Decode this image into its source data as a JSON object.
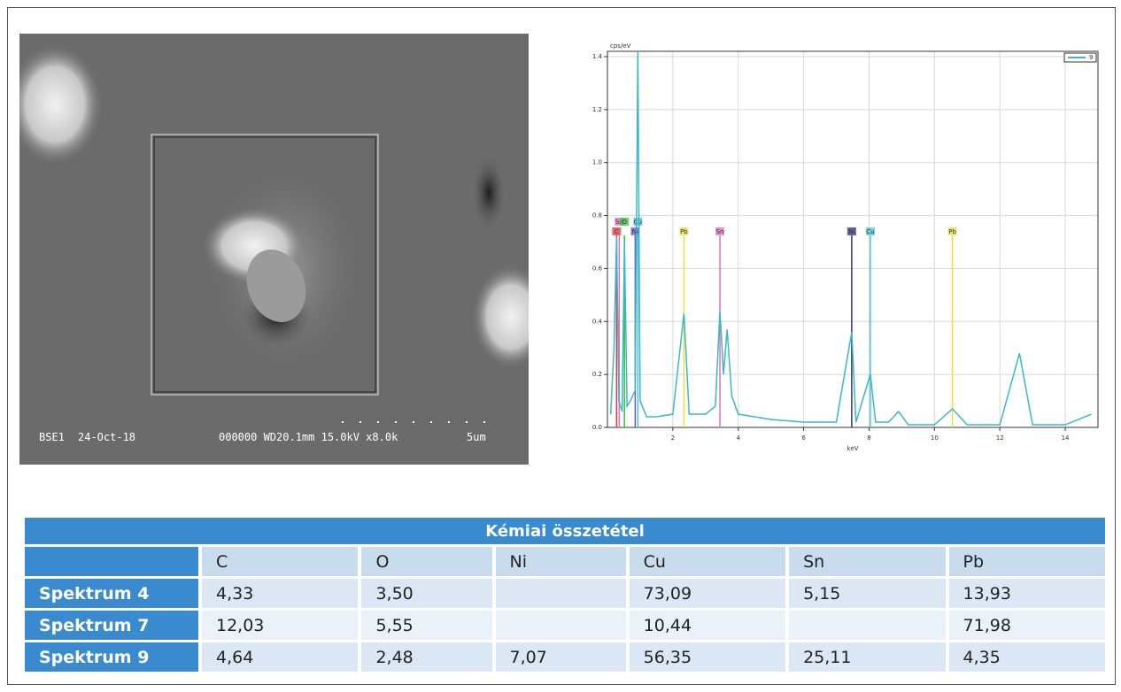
{
  "sem_image": {
    "detector": "BSE1",
    "date": "24-Oct-18",
    "settings": "000000 WD20.1mm 15.0kV x8.0k",
    "scale": "5um"
  },
  "chart_data": {
    "type": "line",
    "ylabel": "cps/eV",
    "xlabel": "keV",
    "xlim": [
      0,
      15
    ],
    "ylim": [
      0,
      1.42
    ],
    "xticks": [
      2,
      4,
      6,
      8,
      10,
      12,
      14
    ],
    "yticks": [
      {
        "value": 0,
        "label": "0.0"
      },
      0.2,
      0.4,
      0.6,
      0.8,
      {
        "value": 1,
        "label": "1.0"
      },
      1.2,
      1.4
    ],
    "grid": true,
    "legend": "upper right",
    "series": [
      {
        "name": "9",
        "color": "#3bb8c8",
        "x": [
          0.1,
          0.2,
          0.28,
          0.35,
          0.45,
          0.52,
          0.6,
          0.7,
          0.85,
          0.93,
          1.0,
          1.2,
          1.5,
          2.0,
          2.34,
          2.5,
          3.0,
          3.3,
          3.44,
          3.55,
          3.66,
          3.8,
          4.0,
          4.5,
          5,
          6,
          7,
          7.47,
          7.6,
          8.04,
          8.2,
          8.6,
          8.9,
          9.2,
          10,
          10.55,
          11,
          12,
          12.6,
          13,
          14,
          14.8
        ],
        "values": [
          0.05,
          0.3,
          0.72,
          0.1,
          0.06,
          0.7,
          0.08,
          0.1,
          0.14,
          1.42,
          0.1,
          0.04,
          0.04,
          0.05,
          0.43,
          0.05,
          0.05,
          0.08,
          0.44,
          0.2,
          0.37,
          0.12,
          0.05,
          0.04,
          0.03,
          0.02,
          0.02,
          0.36,
          0.02,
          0.2,
          0.02,
          0.02,
          0.06,
          0.01,
          0.01,
          0.07,
          0.01,
          0.01,
          0.28,
          0.01,
          0.01,
          0.05
        ]
      }
    ],
    "markers": [
      {
        "label": "C",
        "x": 0.28,
        "color": "#e03a3a"
      },
      {
        "label": "Sn",
        "x": 0.36,
        "color": "#e070c0"
      },
      {
        "label": "O",
        "x": 0.52,
        "color": "#3cc03c"
      },
      {
        "label": "Ni",
        "x": 0.85,
        "color": "#6a5acd"
      },
      {
        "label": "Cu",
        "x": 0.93,
        "color": "#49c6d6"
      },
      {
        "label": "Pb",
        "x": 2.34,
        "color": "#e8e040"
      },
      {
        "label": "Sn",
        "x": 3.44,
        "color": "#e070c0"
      },
      {
        "label": "Ni",
        "x": 7.47,
        "color": "#303080"
      },
      {
        "label": "Cu",
        "x": 8.04,
        "color": "#49c6d6"
      },
      {
        "label": "Pb",
        "x": 10.55,
        "color": "#e8e040"
      }
    ]
  },
  "table": {
    "title": "Kémiai összetétel",
    "columns": [
      "C",
      "O",
      "Ni",
      "Cu",
      "Sn",
      "Pb"
    ],
    "rows": [
      {
        "label": "Spektrum 4",
        "cells": [
          "4,33",
          "3,50",
          null,
          "73,09",
          "5,15",
          "13,93"
        ]
      },
      {
        "label": "Spektrum 7",
        "cells": [
          "12,03",
          "5,55",
          null,
          "10,44",
          null,
          "71,98"
        ]
      },
      {
        "label": "Spektrum 9",
        "cells": [
          "4,64",
          "2,48",
          "7,07",
          "56,35",
          "25,11",
          "4,35"
        ]
      }
    ]
  }
}
